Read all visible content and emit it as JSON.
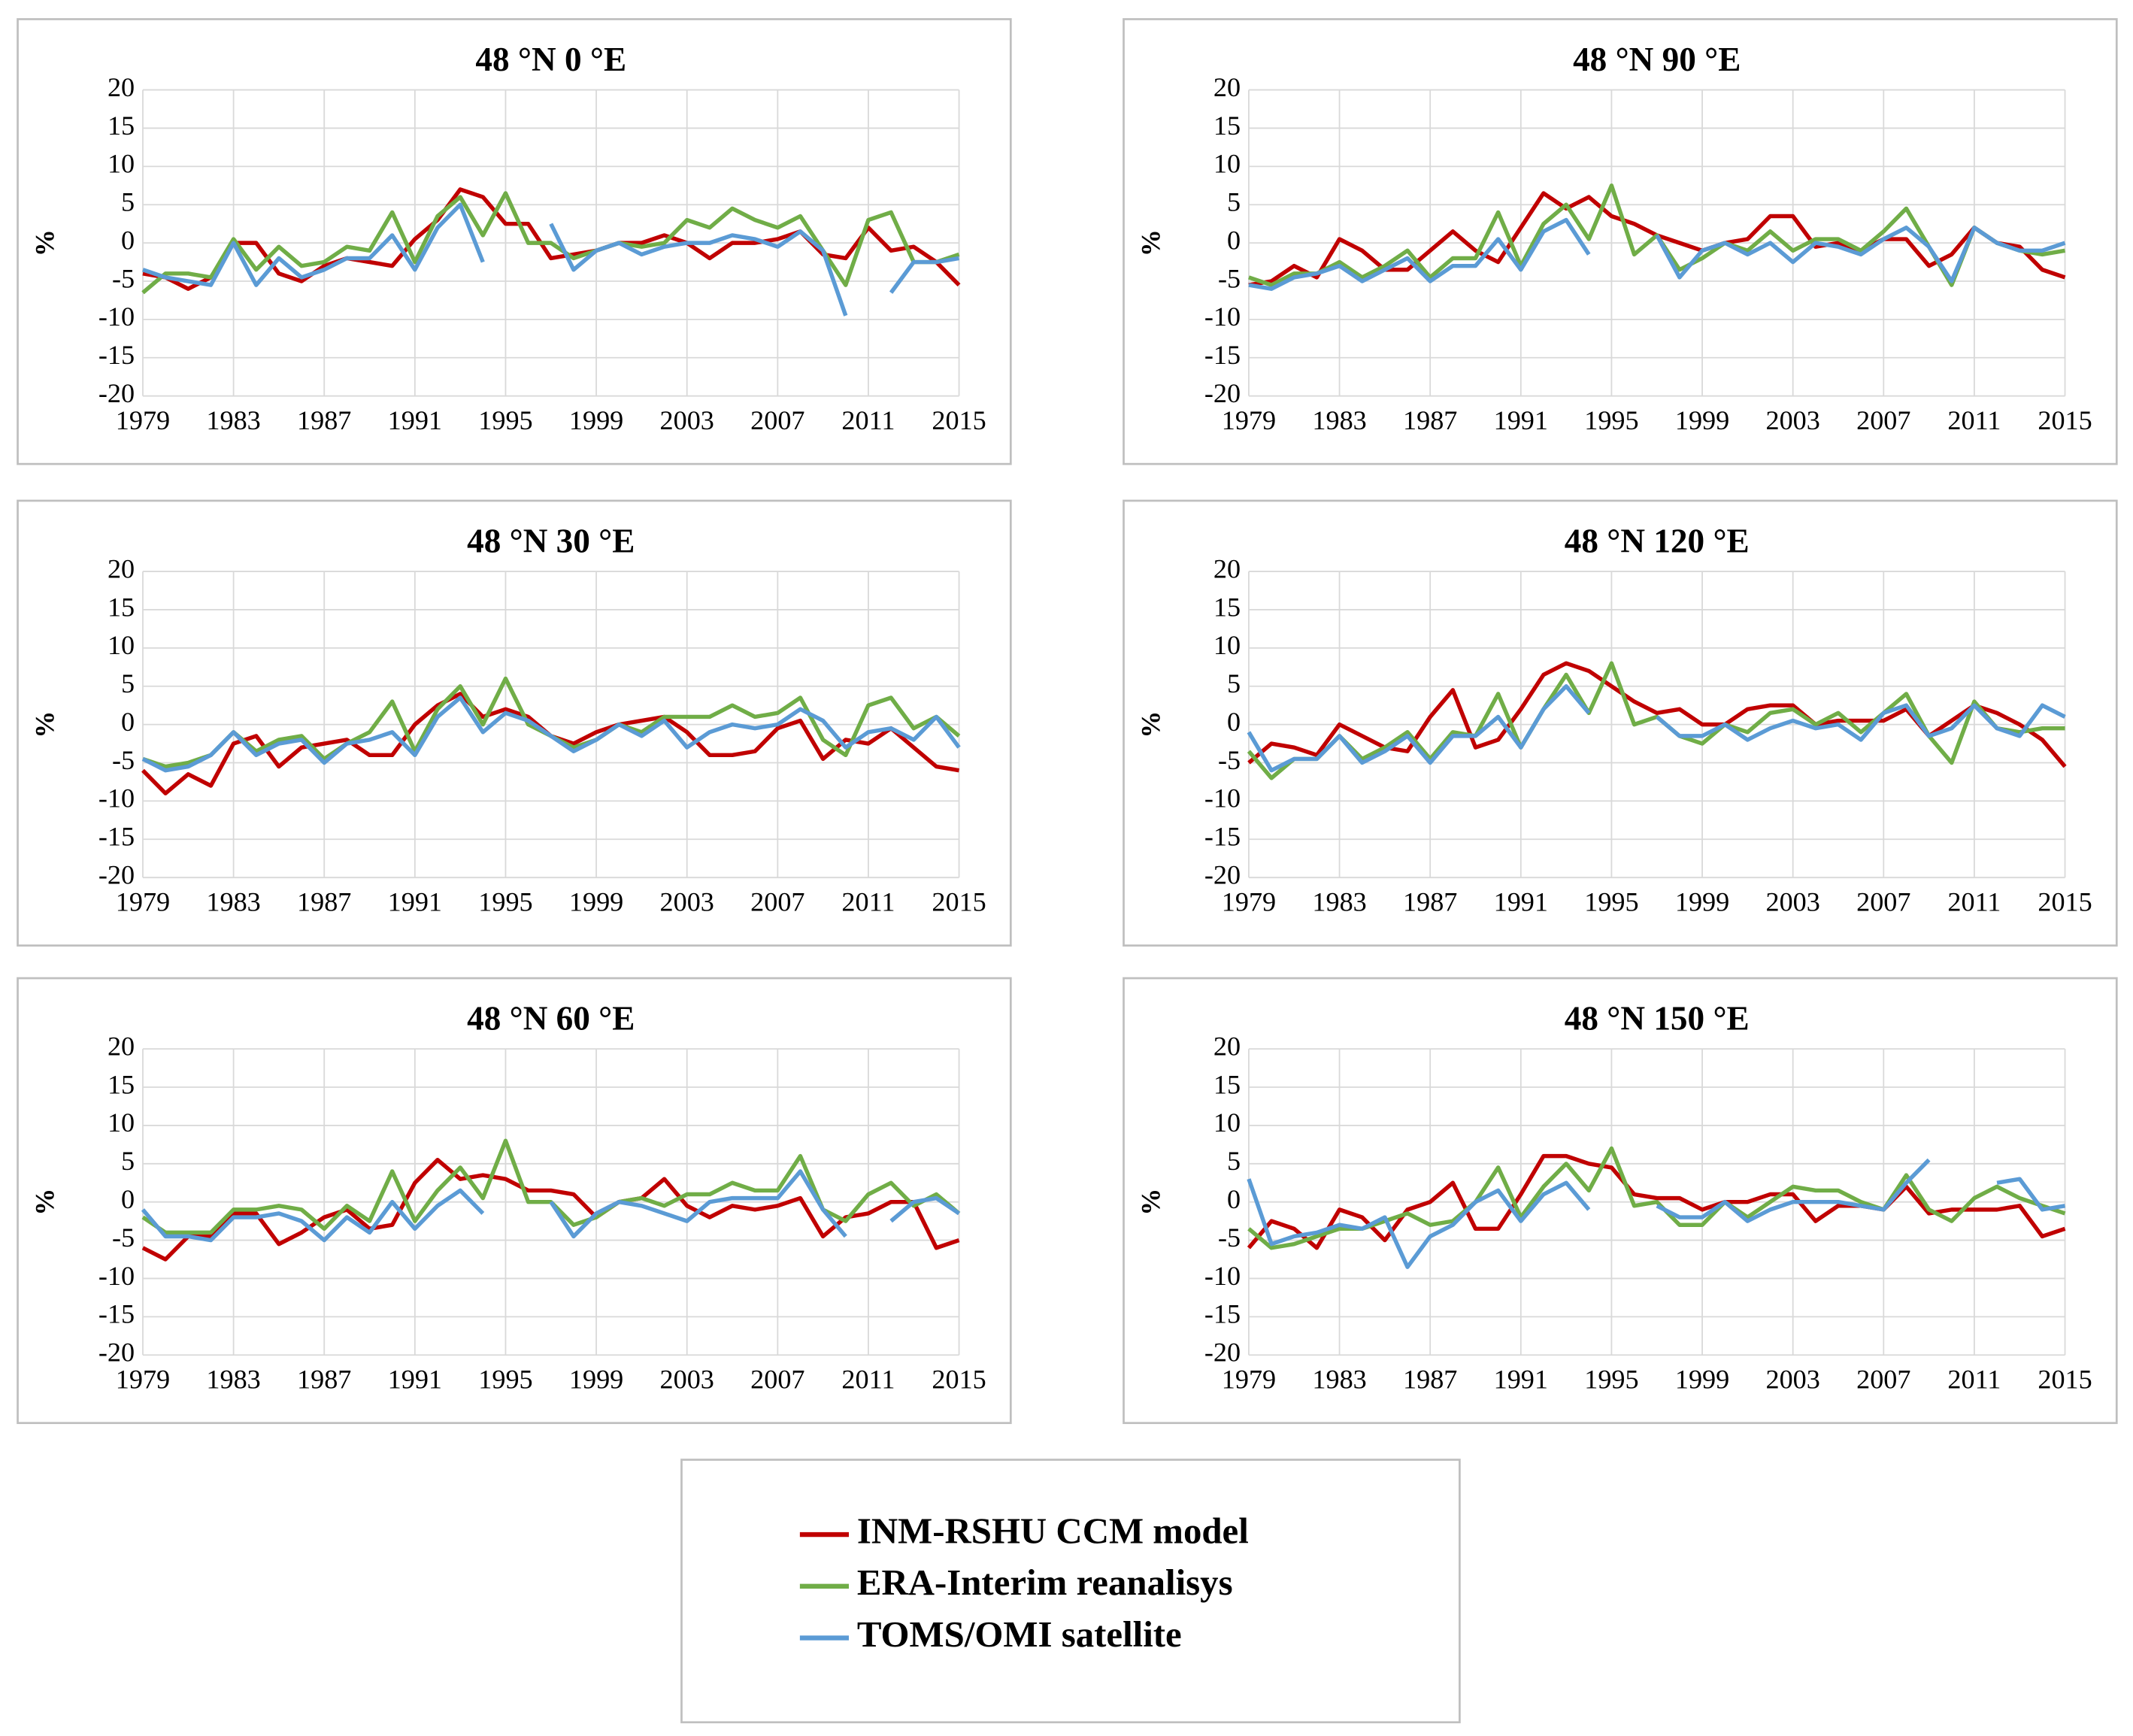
{
  "chart_data": [
    {
      "type": "line",
      "title": "48 °N 0 °E",
      "ylabel": "%",
      "x": [
        1979,
        1980,
        1981,
        1982,
        1983,
        1984,
        1985,
        1986,
        1987,
        1988,
        1989,
        1990,
        1991,
        1992,
        1993,
        1994,
        1995,
        1996,
        1997,
        1998,
        1999,
        2000,
        2001,
        2002,
        2003,
        2004,
        2005,
        2006,
        2007,
        2008,
        2009,
        2010,
        2011,
        2012,
        2013,
        2014,
        2015
      ],
      "xlim": [
        1979,
        2015
      ],
      "xticks": [
        1979,
        1983,
        1987,
        1991,
        1995,
        1999,
        2003,
        2007,
        2011,
        2015
      ],
      "ylim": [
        -20,
        20
      ],
      "yticks": [
        -20,
        -15,
        -10,
        -5,
        0,
        5,
        10,
        15,
        20
      ],
      "grid": true,
      "series": [
        {
          "name": "INM-RSHU CCM model",
          "color": "#c00000",
          "values": [
            -4,
            -4.5,
            -6,
            -4.5,
            0,
            0,
            -4,
            -5,
            -3,
            -2,
            -2.5,
            -3,
            0.5,
            3,
            7,
            6,
            2.5,
            2.5,
            -2,
            -1.5,
            -1,
            0,
            0,
            1,
            0,
            -2,
            0,
            0,
            0.5,
            1.5,
            -1.5,
            -2,
            2,
            -1,
            -0.5,
            -2.5,
            -5.5
          ]
        },
        {
          "name": "ERA-Interim reanalisys",
          "color": "#70ad47",
          "values": [
            -6.5,
            -4,
            -4,
            -4.5,
            0.5,
            -3.5,
            -0.5,
            -3,
            -2.5,
            -0.5,
            -1,
            4,
            -2.5,
            3.5,
            6,
            1,
            6.5,
            0,
            0,
            -2,
            -1,
            0,
            -0.5,
            0,
            3,
            2,
            4.5,
            3,
            2,
            3.5,
            -1,
            -5.5,
            3,
            4,
            -2.5,
            -2.5,
            -1.5
          ]
        },
        {
          "name": "TOMS/OMI satellite",
          "color": "#5b9bd5",
          "values": [
            -3.5,
            -4.5,
            -5,
            -5.5,
            0,
            -5.5,
            -2,
            -4.5,
            -3.5,
            -2,
            -2,
            1,
            -3.5,
            2,
            5,
            -2.5,
            null,
            null,
            2.5,
            -3.5,
            -1,
            0,
            -1.5,
            -0.5,
            0,
            0,
            1,
            0.5,
            -0.5,
            1.5,
            -1,
            -9.5,
            null,
            -6.5,
            -2.5,
            -2.5,
            -2
          ]
        }
      ]
    },
    {
      "type": "line",
      "title": "48 °N 30 °E",
      "ylabel": "%",
      "x": [
        1979,
        1980,
        1981,
        1982,
        1983,
        1984,
        1985,
        1986,
        1987,
        1988,
        1989,
        1990,
        1991,
        1992,
        1993,
        1994,
        1995,
        1996,
        1997,
        1998,
        1999,
        2000,
        2001,
        2002,
        2003,
        2004,
        2005,
        2006,
        2007,
        2008,
        2009,
        2010,
        2011,
        2012,
        2013,
        2014,
        2015
      ],
      "xlim": [
        1979,
        2015
      ],
      "xticks": [
        1979,
        1983,
        1987,
        1991,
        1995,
        1999,
        2003,
        2007,
        2011,
        2015
      ],
      "ylim": [
        -20,
        20
      ],
      "yticks": [
        -20,
        -15,
        -10,
        -5,
        0,
        5,
        10,
        15,
        20
      ],
      "grid": true,
      "series": [
        {
          "color": "#c00000",
          "values": [
            -6,
            -9,
            -6.5,
            -8,
            -2.5,
            -1.5,
            -5.5,
            -3,
            -2.5,
            -2,
            -4,
            -4,
            0,
            2.5,
            4,
            1,
            2,
            1,
            -1.5,
            -2.5,
            -1,
            0,
            0.5,
            1,
            -1,
            -4,
            -4,
            -3.5,
            -0.5,
            0.5,
            -4.5,
            -2,
            -2.5,
            -0.5,
            -3,
            -5.5,
            -6
          ]
        },
        {
          "color": "#70ad47",
          "values": [
            -4.5,
            -5.5,
            -5,
            -4,
            -1,
            -3.5,
            -2,
            -1.5,
            -4.5,
            -2.5,
            -1,
            3,
            -3.5,
            2,
            5,
            0,
            6,
            0,
            -1.5,
            -3,
            -2,
            0,
            -1,
            1,
            1,
            1,
            2.5,
            1,
            1.5,
            3.5,
            -2,
            -4,
            2.5,
            3.5,
            -0.5,
            1,
            -1.5
          ]
        },
        {
          "color": "#5b9bd5",
          "values": [
            -4.5,
            -6,
            -5.5,
            -4,
            -1,
            -4,
            -2.5,
            -2,
            -5,
            -2.5,
            -2,
            -1,
            -4,
            1,
            3.5,
            -1,
            1.5,
            0.5,
            -1.5,
            -3.5,
            -2,
            0,
            -1.5,
            0.5,
            -3,
            -1,
            0,
            -0.5,
            0,
            2,
            0.5,
            -3,
            -1,
            -0.5,
            -2,
            1,
            -3
          ]
        }
      ]
    },
    {
      "type": "line",
      "title": "48 °N 60 °E",
      "ylabel": "%",
      "x": [
        1979,
        1980,
        1981,
        1982,
        1983,
        1984,
        1985,
        1986,
        1987,
        1988,
        1989,
        1990,
        1991,
        1992,
        1993,
        1994,
        1995,
        1996,
        1997,
        1998,
        1999,
        2000,
        2001,
        2002,
        2003,
        2004,
        2005,
        2006,
        2007,
        2008,
        2009,
        2010,
        2011,
        2012,
        2013,
        2014,
        2015
      ],
      "xlim": [
        1979,
        2015
      ],
      "xticks": [
        1979,
        1983,
        1987,
        1991,
        1995,
        1999,
        2003,
        2007,
        2011,
        2015
      ],
      "ylim": [
        -20,
        20
      ],
      "yticks": [
        -20,
        -15,
        -10,
        -5,
        0,
        5,
        10,
        15,
        20
      ],
      "grid": true,
      "series": [
        {
          "color": "#c00000",
          "values": [
            -6,
            -7.5,
            -4.5,
            -4.5,
            -1.5,
            -1.5,
            -5.5,
            -4,
            -2,
            -1,
            -3.5,
            -3,
            2.5,
            5.5,
            3,
            3.5,
            3,
            1.5,
            1.5,
            1,
            -2,
            0,
            0.5,
            3,
            -0.5,
            -2,
            -0.5,
            -1,
            -0.5,
            0.5,
            -4.5,
            -2,
            -1.5,
            0,
            0,
            -6,
            -5
          ]
        },
        {
          "color": "#70ad47",
          "values": [
            -2,
            -4,
            -4,
            -4,
            -1,
            -1,
            -0.5,
            -1,
            -3.5,
            -0.5,
            -2.5,
            4,
            -2.5,
            1.5,
            4.5,
            0.5,
            8,
            0,
            0,
            -3,
            -2,
            0,
            0.5,
            -0.5,
            1,
            1,
            2.5,
            1.5,
            1.5,
            6,
            -1,
            -2.5,
            1,
            2.5,
            -0.5,
            1,
            -1.5
          ]
        },
        {
          "color": "#5b9bd5",
          "values": [
            -1,
            -4.5,
            -4.5,
            -5,
            -2,
            -2,
            -1.5,
            -2.5,
            -5,
            -2,
            -4,
            0,
            -3.5,
            -0.5,
            1.5,
            -1.5,
            null,
            null,
            0,
            -4.5,
            -1.5,
            0,
            -0.5,
            -1.5,
            -2.5,
            0,
            0.5,
            0.5,
            0.5,
            4,
            -1,
            -4.5,
            null,
            -2.5,
            0,
            0.5,
            -1.5
          ]
        }
      ]
    },
    {
      "type": "line",
      "title": "48 °N 90 °E",
      "ylabel": "%",
      "x": [
        1979,
        1980,
        1981,
        1982,
        1983,
        1984,
        1985,
        1986,
        1987,
        1988,
        1989,
        1990,
        1991,
        1992,
        1993,
        1994,
        1995,
        1996,
        1997,
        1998,
        1999,
        2000,
        2001,
        2002,
        2003,
        2004,
        2005,
        2006,
        2007,
        2008,
        2009,
        2010,
        2011,
        2012,
        2013,
        2014,
        2015
      ],
      "xlim": [
        1979,
        2015
      ],
      "xticks": [
        1979,
        1983,
        1987,
        1991,
        1995,
        1999,
        2003,
        2007,
        2011,
        2015
      ],
      "ylim": [
        -20,
        20
      ],
      "yticks": [
        -20,
        -15,
        -10,
        -5,
        0,
        5,
        10,
        15,
        20
      ],
      "grid": true,
      "series": [
        {
          "color": "#c00000",
          "values": [
            -5.5,
            -5,
            -3,
            -4.5,
            0.5,
            -1,
            -3.5,
            -3.5,
            -1,
            1.5,
            -1,
            -2.5,
            2,
            6.5,
            4.5,
            6,
            3.5,
            2.5,
            1,
            0,
            -1,
            0,
            0.5,
            3.5,
            3.5,
            -0.5,
            0,
            -1,
            0.5,
            0.5,
            -3,
            -1.5,
            2,
            0,
            -0.5,
            -3.5,
            -4.5
          ]
        },
        {
          "color": "#70ad47",
          "values": [
            -4.5,
            -5.5,
            -4,
            -4,
            -2.5,
            -4.5,
            -3,
            -1,
            -4.5,
            -2,
            -2,
            4,
            -3,
            2.5,
            5,
            0.5,
            7.5,
            -1.5,
            1,
            -3.5,
            -2,
            0,
            -1,
            1.5,
            -1,
            0.5,
            0.5,
            -1,
            1.5,
            4.5,
            -0.5,
            -5.5,
            2,
            0,
            -1,
            -1.5,
            -1
          ]
        },
        {
          "color": "#5b9bd5",
          "values": [
            -5.5,
            -6,
            -4.5,
            -4,
            -3,
            -5,
            -3.5,
            -2,
            -5,
            -3,
            -3,
            0.5,
            -3.5,
            1.5,
            3,
            -1.5,
            null,
            null,
            1,
            -4.5,
            -1,
            0,
            -1.5,
            0,
            -2.5,
            0,
            -0.5,
            -1.5,
            0.5,
            2,
            -0.5,
            -5,
            2,
            0,
            -1,
            -1,
            0
          ]
        }
      ]
    },
    {
      "type": "line",
      "title": "48 °N 120 °E",
      "ylabel": "%",
      "x": [
        1979,
        1980,
        1981,
        1982,
        1983,
        1984,
        1985,
        1986,
        1987,
        1988,
        1989,
        1990,
        1991,
        1992,
        1993,
        1994,
        1995,
        1996,
        1997,
        1998,
        1999,
        2000,
        2001,
        2002,
        2003,
        2004,
        2005,
        2006,
        2007,
        2008,
        2009,
        2010,
        2011,
        2012,
        2013,
        2014,
        2015
      ],
      "xlim": [
        1979,
        2015
      ],
      "xticks": [
        1979,
        1983,
        1987,
        1991,
        1995,
        1999,
        2003,
        2007,
        2011,
        2015
      ],
      "ylim": [
        -20,
        20
      ],
      "yticks": [
        -20,
        -15,
        -10,
        -5,
        0,
        5,
        10,
        15,
        20
      ],
      "grid": true,
      "series": [
        {
          "color": "#c00000",
          "values": [
            -5,
            -2.5,
            -3,
            -4,
            0,
            -1.5,
            -3,
            -3.5,
            1,
            4.5,
            -3,
            -2,
            2,
            6.5,
            8,
            7,
            5,
            3,
            1.5,
            2,
            0,
            0,
            2,
            2.5,
            2.5,
            0,
            0.5,
            0.5,
            0.5,
            2,
            -1.5,
            0.5,
            2.5,
            1.5,
            0,
            -2,
            -5.5
          ]
        },
        {
          "color": "#70ad47",
          "values": [
            -3.5,
            -7,
            -4.5,
            -4.5,
            -1.5,
            -4.5,
            -3,
            -1,
            -4.5,
            -1,
            -1.5,
            4,
            -3,
            2,
            6.5,
            1.5,
            8,
            0,
            1,
            -1.5,
            -2.5,
            0,
            -1,
            1.5,
            2,
            0,
            1.5,
            -1,
            1.5,
            4,
            -1.5,
            -5,
            3,
            -0.5,
            -1,
            -0.5,
            -0.5
          ]
        },
        {
          "color": "#5b9bd5",
          "values": [
            -1,
            -6,
            -4.5,
            -4.5,
            -1.5,
            -5,
            -3.5,
            -1.5,
            -5,
            -1.5,
            -1.5,
            1,
            -3,
            2,
            5,
            1.5,
            null,
            null,
            1,
            -1.5,
            -1.5,
            0,
            -2,
            -0.5,
            0.5,
            -0.5,
            0,
            -2,
            1.5,
            2.5,
            -1.5,
            -0.5,
            2.5,
            -0.5,
            -1.5,
            2.5,
            1
          ]
        }
      ]
    },
    {
      "type": "line",
      "title": "48 °N 150 °E",
      "ylabel": "%",
      "x": [
        1979,
        1980,
        1981,
        1982,
        1983,
        1984,
        1985,
        1986,
        1987,
        1988,
        1989,
        1990,
        1991,
        1992,
        1993,
        1994,
        1995,
        1996,
        1997,
        1998,
        1999,
        2000,
        2001,
        2002,
        2003,
        2004,
        2005,
        2006,
        2007,
        2008,
        2009,
        2010,
        2011,
        2012,
        2013,
        2014,
        2015
      ],
      "xlim": [
        1979,
        2015
      ],
      "xticks": [
        1979,
        1983,
        1987,
        1991,
        1995,
        1999,
        2003,
        2007,
        2011,
        2015
      ],
      "ylim": [
        -20,
        20
      ],
      "yticks": [
        -20,
        -15,
        -10,
        -5,
        0,
        5,
        10,
        15,
        20
      ],
      "grid": true,
      "series": [
        {
          "color": "#c00000",
          "values": [
            -6,
            -2.5,
            -3.5,
            -6,
            -1,
            -2,
            -5,
            -1,
            0,
            2.5,
            -3.5,
            -3.5,
            1,
            6,
            6,
            5,
            4.5,
            1,
            0.5,
            0.5,
            -1,
            0,
            0,
            1,
            1,
            -2.5,
            -0.5,
            -0.5,
            -1,
            2,
            -1.5,
            -1,
            -1,
            -1,
            -0.5,
            -4.5,
            -3.5
          ]
        },
        {
          "color": "#70ad47",
          "values": [
            -3.5,
            -6,
            -5.5,
            -4.5,
            -3.5,
            -3.5,
            -2.5,
            -1.5,
            -3,
            -2.5,
            0,
            4.5,
            -2,
            2,
            5,
            1.5,
            7,
            -0.5,
            0,
            -3,
            -3,
            0,
            -2,
            0,
            2,
            1.5,
            1.5,
            0,
            -1,
            3.5,
            -1,
            -2.5,
            0.5,
            2,
            0.5,
            -0.5,
            -1.5
          ]
        },
        {
          "color": "#5b9bd5",
          "values": [
            3,
            -5.5,
            -4.5,
            -4,
            -3,
            -3.5,
            -2,
            -8.5,
            -4.5,
            -3,
            0,
            1.5,
            -2.5,
            1,
            2.5,
            -1,
            null,
            null,
            -0.5,
            -2,
            -2,
            0,
            -2.5,
            -1,
            0,
            0,
            0,
            -0.5,
            -1,
            2.5,
            5.5,
            null,
            null,
            2.5,
            3,
            -1,
            -0.5
          ]
        }
      ]
    }
  ]
}
